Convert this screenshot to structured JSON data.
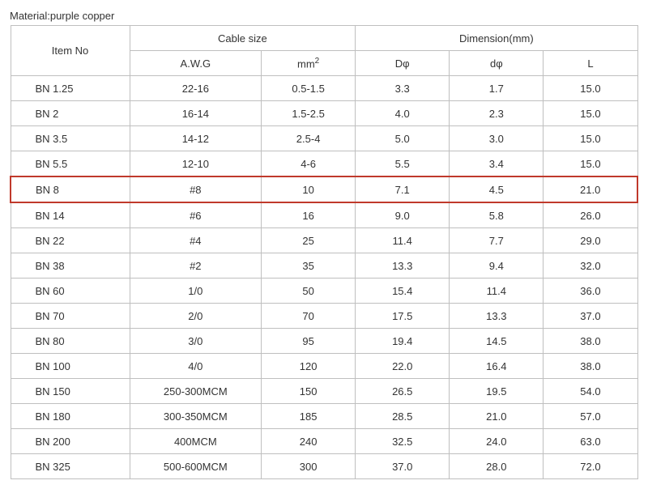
{
  "material_label": "Material:purple copper",
  "headers": {
    "item_no": "Item No",
    "cable_size": "Cable size",
    "dimension": "Dimension(mm)",
    "awg": "A.W.G",
    "mm2_prefix": "mm",
    "mm2_sup": "2",
    "d_upper": "Dφ",
    "d_lower": "dφ",
    "l": "L"
  },
  "highlight_index": 4,
  "rows": [
    {
      "item": "BN 1.25",
      "awg": "22-16",
      "mm2": "0.5-1.5",
      "D": "3.3",
      "d": "1.7",
      "L": "15.0"
    },
    {
      "item": "BN 2",
      "awg": "16-14",
      "mm2": "1.5-2.5",
      "D": "4.0",
      "d": "2.3",
      "L": "15.0"
    },
    {
      "item": "BN 3.5",
      "awg": "14-12",
      "mm2": "2.5-4",
      "D": "5.0",
      "d": "3.0",
      "L": "15.0"
    },
    {
      "item": "BN 5.5",
      "awg": "12-10",
      "mm2": "4-6",
      "D": "5.5",
      "d": "3.4",
      "L": "15.0"
    },
    {
      "item": "BN 8",
      "awg": "#8",
      "mm2": "10",
      "D": "7.1",
      "d": "4.5",
      "L": "21.0"
    },
    {
      "item": "BN 14",
      "awg": "#6",
      "mm2": "16",
      "D": "9.0",
      "d": "5.8",
      "L": "26.0"
    },
    {
      "item": "BN 22",
      "awg": "#4",
      "mm2": "25",
      "D": "11.4",
      "d": "7.7",
      "L": "29.0"
    },
    {
      "item": "BN 38",
      "awg": "#2",
      "mm2": "35",
      "D": "13.3",
      "d": "9.4",
      "L": "32.0"
    },
    {
      "item": "BN 60",
      "awg": "1/0",
      "mm2": "50",
      "D": "15.4",
      "d": "11.4",
      "L": "36.0"
    },
    {
      "item": "BN 70",
      "awg": "2/0",
      "mm2": "70",
      "D": "17.5",
      "d": "13.3",
      "L": "37.0"
    },
    {
      "item": "BN 80",
      "awg": "3/0",
      "mm2": "95",
      "D": "19.4",
      "d": "14.5",
      "L": "38.0"
    },
    {
      "item": "BN 100",
      "awg": "4/0",
      "mm2": "120",
      "D": "22.0",
      "d": "16.4",
      "L": "38.0"
    },
    {
      "item": "BN 150",
      "awg": "250-300MCM",
      "mm2": "150",
      "D": "26.5",
      "d": "19.5",
      "L": "54.0"
    },
    {
      "item": "BN 180",
      "awg": "300-350MCM",
      "mm2": "185",
      "D": "28.5",
      "d": "21.0",
      "L": "57.0"
    },
    {
      "item": "BN 200",
      "awg": "400MCM",
      "mm2": "240",
      "D": "32.5",
      "d": "24.0",
      "L": "63.0"
    },
    {
      "item": "BN 325",
      "awg": "500-600MCM",
      "mm2": "300",
      "D": "37.0",
      "d": "28.0",
      "L": "72.0"
    }
  ],
  "colors": {
    "border": "#bfbfbf",
    "highlight_border": "#c0392b",
    "text": "#333333",
    "background": "#ffffff"
  }
}
